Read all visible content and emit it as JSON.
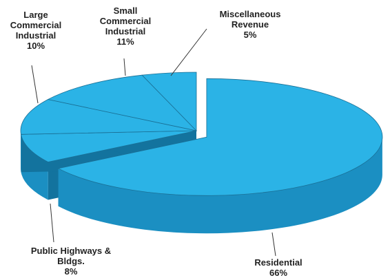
{
  "chart_data": {
    "type": "pie3d",
    "categories": [
      "Residential",
      "Public Highways & Bldgs.",
      "Large Commercial Industrial",
      "Small Commercial Industrial",
      "Miscellaneous Revenue"
    ],
    "values": [
      66,
      8,
      10,
      11,
      5
    ],
    "value_labels": [
      "66%",
      "8%",
      "10%",
      "11%",
      "5%"
    ],
    "color": "#2bb3e6",
    "exploded": [
      0
    ]
  }
}
